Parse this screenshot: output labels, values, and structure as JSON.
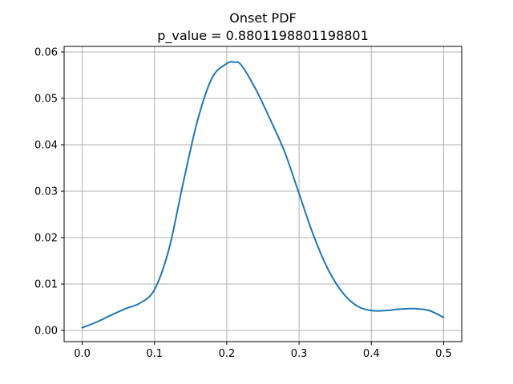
{
  "chart_data": {
    "type": "line",
    "title": "Onset PDF",
    "subtitle": "p_value = 0.8801198801198801",
    "xlabel": "",
    "ylabel": "",
    "xlim": [
      -0.025,
      0.525
    ],
    "ylim": [
      -0.0024,
      0.0612
    ],
    "xticks": [
      0.0,
      0.1,
      0.2,
      0.3,
      0.4,
      0.5
    ],
    "xtick_labels": [
      "0.0",
      "0.1",
      "0.2",
      "0.3",
      "0.4",
      "0.5"
    ],
    "yticks": [
      0.0,
      0.01,
      0.02,
      0.03,
      0.04,
      0.05,
      0.06
    ],
    "ytick_labels": [
      "0.00",
      "0.01",
      "0.02",
      "0.03",
      "0.04",
      "0.05",
      "0.06"
    ],
    "grid": true,
    "colors": {
      "line": "#1f77b4",
      "grid": "#b0b0b0",
      "axes": "#000000"
    },
    "series": [
      {
        "name": "Onset PDF",
        "x": [
          0.0,
          0.02,
          0.04,
          0.06,
          0.08,
          0.1,
          0.12,
          0.14,
          0.16,
          0.18,
          0.2,
          0.21,
          0.22,
          0.24,
          0.26,
          0.28,
          0.3,
          0.32,
          0.34,
          0.36,
          0.38,
          0.4,
          0.42,
          0.44,
          0.46,
          0.48,
          0.5
        ],
        "y": [
          0.0006,
          0.0018,
          0.0033,
          0.0047,
          0.0059,
          0.0088,
          0.0175,
          0.032,
          0.0455,
          0.0545,
          0.0575,
          0.0578,
          0.0572,
          0.052,
          0.0455,
          0.0385,
          0.0295,
          0.0205,
          0.0132,
          0.0082,
          0.0053,
          0.0043,
          0.0043,
          0.0046,
          0.0047,
          0.0043,
          0.0028
        ]
      }
    ]
  }
}
